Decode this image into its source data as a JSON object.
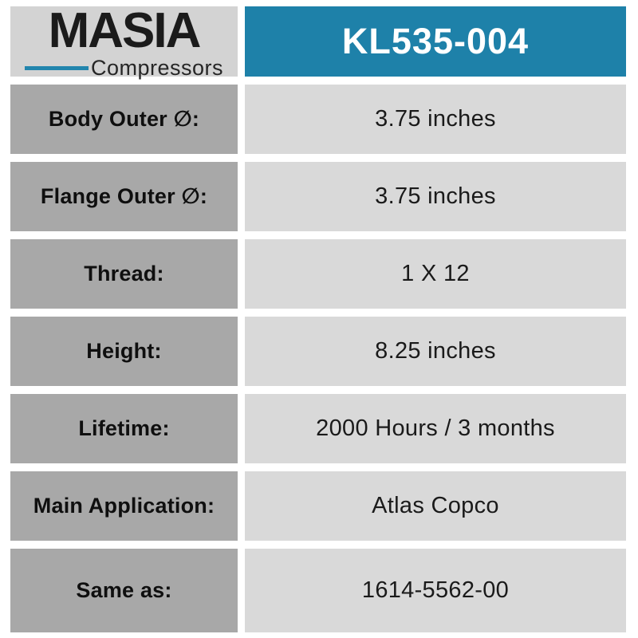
{
  "logo": {
    "name": "MASIA",
    "subtitle": "Compressors"
  },
  "header": {
    "part_number": "KL535-004"
  },
  "specs": {
    "rows": [
      {
        "label": "Body Outer ∅:",
        "value": "3.75 inches"
      },
      {
        "label": "Flange Outer ∅:",
        "value": "3.75 inches"
      },
      {
        "label": "Thread:",
        "value": "1 X 12"
      },
      {
        "label": "Height:",
        "value": "8.25 inches"
      },
      {
        "label": "Lifetime:",
        "value": "2000 Hours / 3 months"
      },
      {
        "label": "Main Application:",
        "value": "Atlas Copco"
      },
      {
        "label": "Same as:",
        "value": "1614-5562-00"
      }
    ]
  },
  "colors": {
    "header_bg": "#1e81a9",
    "accent": "#2285ad",
    "label_bg": "#a8a8a8",
    "value_bg": "#d9d9d9",
    "logo_bg": "#d3d3d3"
  }
}
